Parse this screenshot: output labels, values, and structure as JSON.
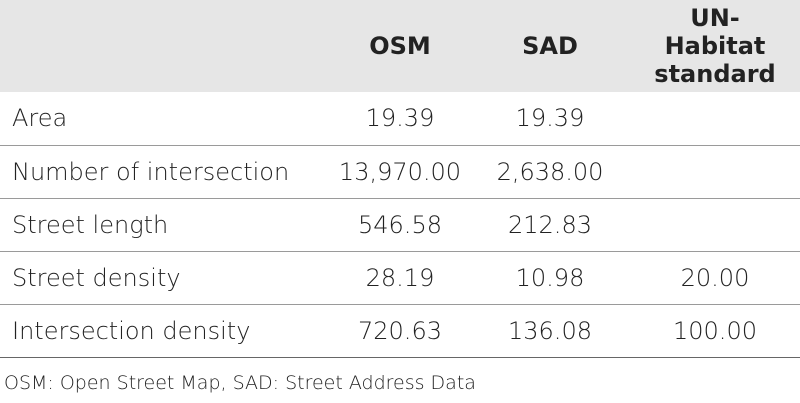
{
  "table": {
    "header": [
      null,
      "OSM",
      "SAD",
      "UN-Habitat standard"
    ],
    "rows": [
      [
        "Area",
        "19.39",
        "19.39",
        null
      ],
      [
        "Number of intersection",
        "13,970.00",
        "2,638.00",
        null
      ],
      [
        "Street length",
        "546.58",
        "212.83",
        null
      ],
      [
        "Street density",
        "28.19",
        "10.98",
        "20.00"
      ],
      [
        "Intersection density",
        "720.63",
        "136.08",
        "100.00"
      ]
    ]
  },
  "footnote": "OSM: Open Street Map, SAD: Street Address Data"
}
